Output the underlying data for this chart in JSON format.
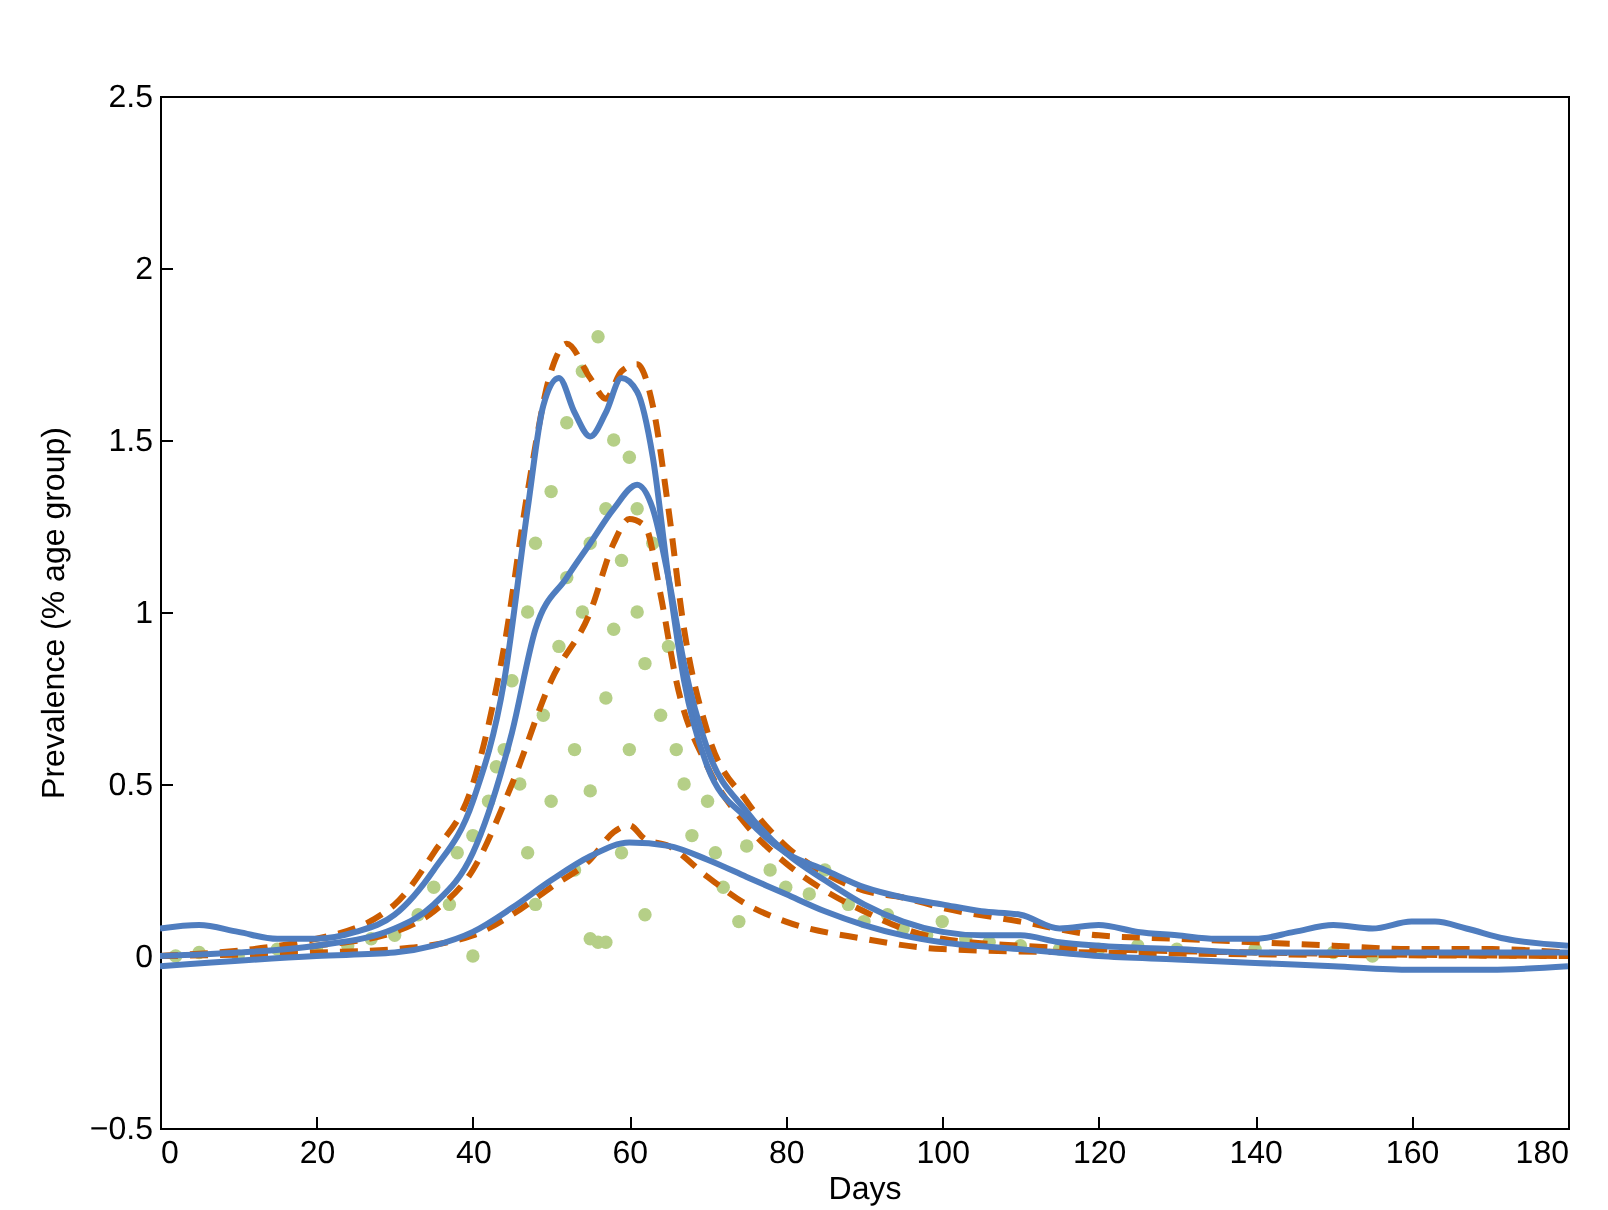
{
  "chart_data": {
    "type": "line",
    "xlabel": "Days",
    "ylabel": "Prevalence (% age group)",
    "xlim": [
      0,
      180
    ],
    "ylim": [
      -0.5,
      2.5
    ],
    "xticks": [
      0,
      20,
      40,
      60,
      80,
      100,
      120,
      140,
      160,
      180
    ],
    "yticks": [
      -0.5,
      0,
      0.5,
      1,
      1.5,
      2,
      2.5
    ],
    "series": [
      {
        "type": "scatter",
        "marker": "circle",
        "color": "#b5cf87",
        "x": [
          2,
          5,
          10,
          15,
          20,
          24,
          27,
          30,
          33,
          35,
          37,
          38,
          40,
          40,
          42,
          43,
          44,
          45,
          46,
          47,
          47,
          48,
          48,
          49,
          50,
          50,
          51,
          52,
          52,
          53,
          53,
          54,
          54,
          55,
          55,
          55,
          56,
          56,
          57,
          57,
          57,
          58,
          58,
          59,
          59,
          60,
          60,
          61,
          61,
          62,
          62,
          63,
          64,
          65,
          66,
          67,
          68,
          70,
          71,
          72,
          74,
          75,
          78,
          80,
          83,
          85,
          88,
          90,
          93,
          95,
          98,
          100,
          103,
          106,
          110,
          115,
          120,
          125,
          130,
          140,
          150,
          155
        ],
        "values": [
          0,
          0.01,
          0,
          0.02,
          0.02,
          0.03,
          0.05,
          0.06,
          0.12,
          0.2,
          0.15,
          0.3,
          0,
          0.35,
          0.45,
          0.55,
          0.6,
          0.8,
          0.5,
          1,
          0.3,
          1.2,
          0.15,
          0.7,
          1.35,
          0.45,
          0.9,
          1.1,
          1.55,
          0.6,
          0.25,
          1,
          1.7,
          0.05,
          0.48,
          1.2,
          0.04,
          1.8,
          0.04,
          1.3,
          0.75,
          0.95,
          1.5,
          1.15,
          0.3,
          1.45,
          0.6,
          1,
          1.3,
          0.85,
          0.12,
          1.2,
          0.7,
          0.9,
          0.6,
          0.5,
          0.35,
          0.45,
          0.3,
          0.2,
          0.1,
          0.32,
          0.25,
          0.2,
          0.18,
          0.25,
          0.15,
          0.1,
          0.12,
          0.08,
          0.06,
          0.1,
          0.05,
          0.04,
          0.03,
          0.02,
          0.02,
          0.03,
          0.02,
          0.02,
          0.01,
          0
        ]
      },
      {
        "line_style": "dashed",
        "color": "#cc5c00",
        "x": [
          0,
          20,
          30,
          35,
          40,
          44,
          47,
          50,
          52,
          55,
          57,
          59,
          61,
          63,
          65,
          67,
          70,
          75,
          80,
          85,
          90,
          95,
          100,
          110,
          120,
          130,
          140,
          150,
          160,
          170,
          180
        ],
        "values": [
          0,
          0.05,
          0.15,
          0.3,
          0.5,
          0.9,
          1.35,
          1.7,
          1.78,
          1.68,
          1.62,
          1.7,
          1.72,
          1.6,
          1.3,
          0.95,
          0.65,
          0.45,
          0.32,
          0.24,
          0.19,
          0.17,
          0.14,
          0.1,
          0.06,
          0.05,
          0.04,
          0.03,
          0.02,
          0.02,
          0.01
        ]
      },
      {
        "line_style": "dashed",
        "color": "#cc5c00",
        "x": [
          0,
          20,
          30,
          35,
          40,
          45,
          50,
          55,
          58,
          60,
          62,
          64,
          66,
          70,
          75,
          80,
          85,
          90,
          95,
          100,
          110,
          120,
          140,
          180
        ],
        "values": [
          0,
          0.03,
          0.07,
          0.13,
          0.25,
          0.5,
          0.8,
          1,
          1.2,
          1.27,
          1.25,
          1.05,
          0.8,
          0.55,
          0.38,
          0.27,
          0.19,
          0.13,
          0.08,
          0.05,
          0.03,
          0.02,
          0.01,
          0
        ]
      },
      {
        "line_style": "dashed",
        "color": "#cc5c00",
        "x": [
          0,
          20,
          30,
          40,
          45,
          50,
          55,
          58,
          60,
          62,
          65,
          70,
          75,
          80,
          90,
          100,
          120,
          180
        ],
        "values": [
          0,
          0.01,
          0.02,
          0.06,
          0.12,
          0.2,
          0.28,
          0.36,
          0.38,
          0.34,
          0.32,
          0.23,
          0.15,
          0.1,
          0.05,
          0.02,
          0.01,
          0
        ]
      },
      {
        "line_style": "solid",
        "color": "#4f7dbf",
        "x": [
          0,
          5,
          10,
          15,
          20,
          25,
          30,
          35,
          40,
          44,
          47,
          49,
          51,
          53,
          55,
          57,
          59,
          61,
          63,
          65,
          67,
          70,
          75,
          80,
          85,
          90,
          95,
          100,
          105,
          110,
          115,
          120,
          125,
          130,
          135,
          140,
          145,
          150,
          155,
          160,
          163,
          167,
          172,
          180
        ],
        "values": [
          0.08,
          0.09,
          0.07,
          0.05,
          0.05,
          0.07,
          0.12,
          0.25,
          0.45,
          0.8,
          1.3,
          1.6,
          1.68,
          1.58,
          1.51,
          1.58,
          1.68,
          1.64,
          1.45,
          1.1,
          0.8,
          0.55,
          0.4,
          0.3,
          0.25,
          0.2,
          0.17,
          0.15,
          0.13,
          0.12,
          0.08,
          0.09,
          0.07,
          0.06,
          0.05,
          0.05,
          0.07,
          0.09,
          0.08,
          0.1,
          0.1,
          0.08,
          0.05,
          0.03
        ]
      },
      {
        "line_style": "solid",
        "color": "#4f7dbf",
        "x": [
          0,
          10,
          20,
          30,
          35,
          40,
          45,
          48,
          52,
          55,
          58,
          61,
          63,
          65,
          67,
          70,
          75,
          80,
          85,
          90,
          95,
          100,
          105,
          110,
          115,
          120,
          130,
          140,
          150,
          160,
          170,
          180
        ],
        "values": [
          0,
          0.01,
          0.03,
          0.08,
          0.15,
          0.3,
          0.65,
          0.95,
          1.1,
          1.2,
          1.3,
          1.37,
          1.3,
          1.1,
          0.85,
          0.6,
          0.42,
          0.3,
          0.22,
          0.15,
          0.1,
          0.07,
          0.06,
          0.06,
          0.04,
          0.03,
          0.02,
          0.01,
          0.01,
          0.01,
          0.01,
          0.01
        ]
      },
      {
        "line_style": "solid",
        "color": "#4f7dbf",
        "x": [
          0,
          20,
          30,
          35,
          40,
          45,
          50,
          55,
          60,
          65,
          70,
          75,
          80,
          85,
          90,
          95,
          100,
          110,
          120,
          130,
          140,
          150,
          160,
          170,
          180
        ],
        "values": [
          -0.03,
          0,
          0.01,
          0.03,
          0.07,
          0.14,
          0.22,
          0.29,
          0.33,
          0.32,
          0.28,
          0.23,
          0.18,
          0.13,
          0.09,
          0.06,
          0.04,
          0.02,
          0,
          -0.01,
          -0.02,
          -0.03,
          -0.04,
          -0.04,
          -0.03
        ]
      }
    ]
  }
}
